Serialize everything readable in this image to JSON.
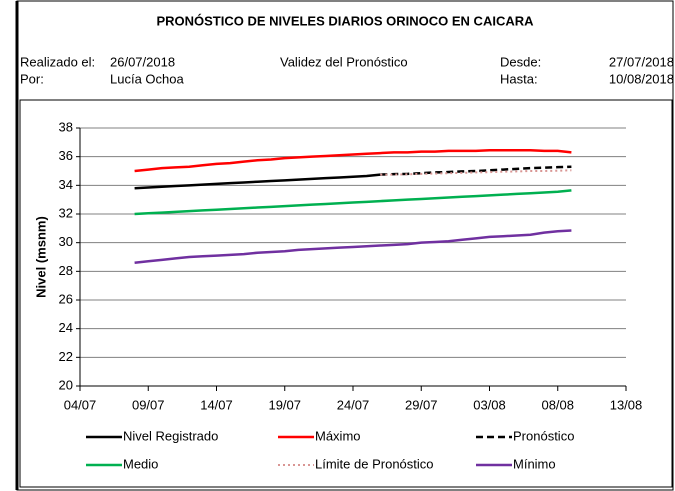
{
  "header": {
    "title": "PRONÓSTICO DE NIVELES DIARIOS ORINOCO EN CAICARA",
    "made_label": "Realizado el:",
    "made_date": "26/07/2018",
    "validity": "Validez del Pronóstico",
    "from_label": "Desde:",
    "from_date": "27/07/2018",
    "by_label": "Por:",
    "by_name": "Lucía Ochoa",
    "to_label": "Hasta:",
    "to_date": "10/08/2018"
  },
  "chart_data": {
    "type": "line",
    "ylabel": "Nivel (msnm)",
    "x": [
      "08/07",
      "09/07",
      "10/07",
      "11/07",
      "12/07",
      "13/07",
      "14/07",
      "15/07",
      "16/07",
      "17/07",
      "18/07",
      "19/07",
      "20/07",
      "21/07",
      "22/07",
      "23/07",
      "24/07",
      "25/07",
      "26/07",
      "27/07",
      "28/07",
      "29/07",
      "30/07",
      "31/07",
      "01/08",
      "02/08",
      "03/08",
      "04/08",
      "05/08",
      "06/08",
      "07/08",
      "08/08",
      "09/08"
    ],
    "series": [
      {
        "name": "Nivel Registrado",
        "color": "#000000",
        "style": "solid",
        "values": [
          33.8,
          33.85,
          33.9,
          33.95,
          34.0,
          34.05,
          34.1,
          34.15,
          34.2,
          34.25,
          34.3,
          34.35,
          34.4,
          34.45,
          34.5,
          34.55,
          34.6,
          34.65,
          34.75,
          null,
          null,
          null,
          null,
          null,
          null,
          null,
          null,
          null,
          null,
          null,
          null,
          null,
          null
        ]
      },
      {
        "name": "Máximo",
        "color": "#ff0000",
        "style": "solid",
        "values": [
          35.0,
          35.1,
          35.2,
          35.25,
          35.3,
          35.4,
          35.5,
          35.55,
          35.65,
          35.75,
          35.8,
          35.9,
          35.95,
          36.0,
          36.05,
          36.1,
          36.15,
          36.2,
          36.25,
          36.3,
          36.3,
          36.35,
          36.35,
          36.4,
          36.4,
          36.4,
          36.45,
          36.45,
          36.45,
          36.45,
          36.4,
          36.4,
          36.3
        ]
      },
      {
        "name": "Pronóstico",
        "color": "#000000",
        "style": "dashed",
        "values": [
          null,
          null,
          null,
          null,
          null,
          null,
          null,
          null,
          null,
          null,
          null,
          null,
          null,
          null,
          null,
          null,
          null,
          null,
          34.75,
          34.78,
          34.8,
          34.85,
          34.9,
          34.93,
          34.97,
          35.0,
          35.05,
          35.1,
          35.15,
          35.2,
          35.23,
          35.27,
          35.3
        ]
      },
      {
        "name": "Medio",
        "color": "#00b050",
        "style": "solid",
        "values": [
          32.0,
          32.05,
          32.1,
          32.15,
          32.2,
          32.25,
          32.3,
          32.35,
          32.4,
          32.45,
          32.5,
          32.55,
          32.6,
          32.65,
          32.7,
          32.75,
          32.8,
          32.85,
          32.9,
          32.95,
          33.0,
          33.05,
          33.1,
          33.15,
          33.2,
          33.25,
          33.3,
          33.35,
          33.4,
          33.45,
          33.5,
          33.55,
          33.65
        ]
      },
      {
        "name": "Límite de Pronóstico",
        "color": "#d99694",
        "style": "dotted",
        "values": [
          null,
          null,
          null,
          null,
          null,
          null,
          null,
          null,
          null,
          null,
          null,
          null,
          null,
          null,
          null,
          null,
          null,
          null,
          34.75,
          34.75,
          34.77,
          34.8,
          34.82,
          34.85,
          34.87,
          34.9,
          34.92,
          34.95,
          34.97,
          35.0,
          35.0,
          35.02,
          35.05
        ]
      },
      {
        "name": "Mínimo",
        "color": "#7030a0",
        "style": "solid",
        "values": [
          28.6,
          28.7,
          28.8,
          28.9,
          29.0,
          29.05,
          29.1,
          29.15,
          29.2,
          29.3,
          29.35,
          29.4,
          29.5,
          29.55,
          29.6,
          29.65,
          29.7,
          29.75,
          29.8,
          29.85,
          29.9,
          30.0,
          30.05,
          30.1,
          30.2,
          30.3,
          30.4,
          30.45,
          30.5,
          30.55,
          30.7,
          30.8,
          30.85
        ]
      }
    ],
    "xlim": [
      "04/07",
      "13/08"
    ],
    "xticks": [
      "04/07",
      "09/07",
      "14/07",
      "19/07",
      "24/07",
      "29/07",
      "03/08",
      "08/08",
      "13/08"
    ],
    "ylim": [
      20,
      38
    ],
    "yticks": [
      20,
      22,
      24,
      26,
      28,
      30,
      32,
      34,
      36,
      38
    ],
    "grid": true,
    "legend": "bottom"
  }
}
